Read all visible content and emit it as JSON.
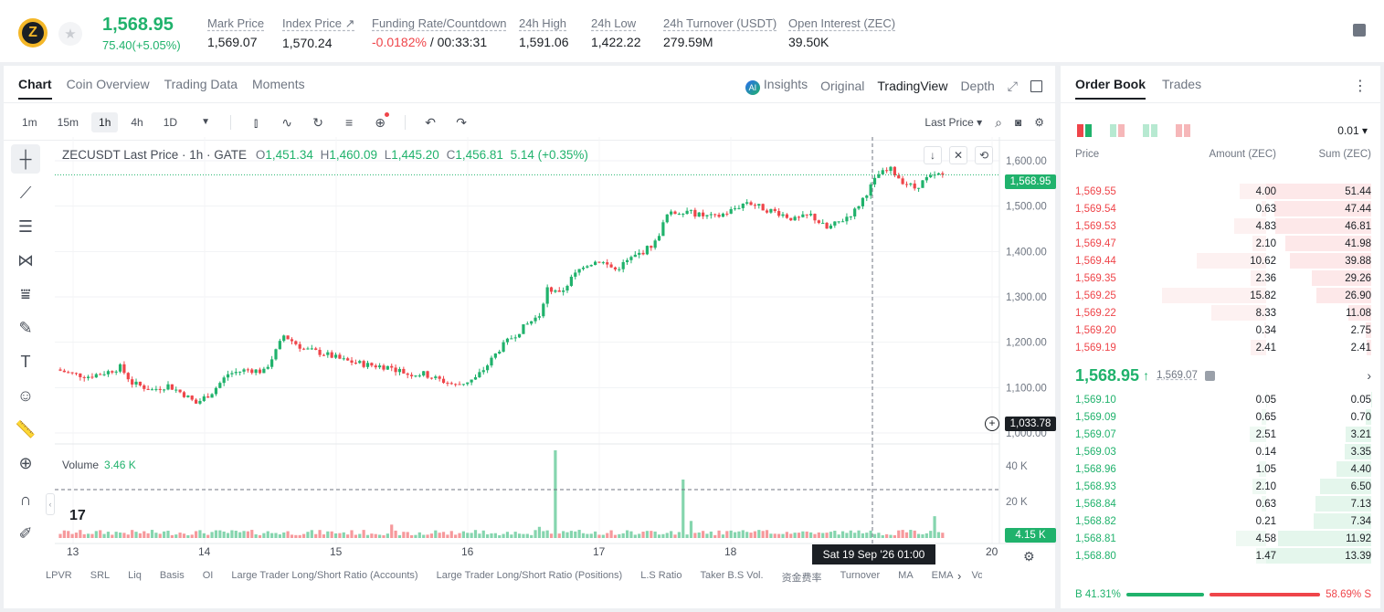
{
  "header": {
    "coin_logo": "Z",
    "last_price": "1,568.95",
    "change": "75.40(+5.05%)",
    "stats": [
      {
        "label": "Mark Price",
        "value": "1,569.07",
        "x": 227
      },
      {
        "label": "Index Price ↗",
        "value": "1,570.24",
        "x": 309
      },
      {
        "label": "Funding Rate/Countdown",
        "value_neg": "-0.0182%",
        "value": " / 00:33:31",
        "x": 407
      },
      {
        "label": "24h High",
        "value": "1,591.06",
        "x": 568
      },
      {
        "label": "24h Low",
        "value": "1,422.22",
        "x": 647
      },
      {
        "label": "24h Turnover (USDT)",
        "value": "279.59M",
        "x": 726
      },
      {
        "label": "Open Interest (ZEC)",
        "value": "39.50K",
        "x": 863
      }
    ]
  },
  "chart_tabs": [
    "Chart",
    "Coin Overview",
    "Trading Data",
    "Moments"
  ],
  "view_tabs": {
    "insights": "Insights",
    "original": "Original",
    "tradingview": "TradingView",
    "depth": "Depth",
    "ai_badge": "AI"
  },
  "toolbar": {
    "intervals": [
      "1m",
      "15m",
      "1h",
      "4h",
      "1D"
    ],
    "active_interval": "1h",
    "price_type": "Last Price ▾"
  },
  "legend": {
    "symbol": "ZECUSDT Last Price · 1h · GATE",
    "o_label": "O",
    "o": "1,451.34",
    "h_label": "H",
    "h": "1,460.09",
    "l_label": "L",
    "l": "1,445.20",
    "c_label": "C",
    "c": "1,456.81",
    "chg": "5.14 (+0.35%)"
  },
  "volume_legend": {
    "label": "Volume",
    "value": "3.46 K"
  },
  "price_axis": [
    "1,600.00",
    "1,500.00",
    "1,400.00",
    "1,300.00",
    "1,200.00",
    "1,100.00",
    "1,000.00"
  ],
  "volume_axis": [
    "40 K",
    "20 K"
  ],
  "x_axis": [
    "13",
    "14",
    "15",
    "16",
    "17",
    "18",
    "20"
  ],
  "tags": {
    "last_price": "1,568.95",
    "crosshair_price": "1,033.78",
    "volume": "4.15 K",
    "crosshair_date": "Sat 19 Sep '26   01:00"
  },
  "indicators": [
    "LPVR",
    "SRL",
    "Liq",
    "Basis",
    "OI",
    "Large Trader Long/Short Ratio (Accounts)",
    "Large Trader Long/Short Ratio (Positions)",
    "L.S Ratio",
    "Taker B.S Vol.",
    "资金费率",
    "Turnover",
    "MA",
    "EMA",
    "Volu"
  ],
  "tv_logo": "17",
  "colors": {
    "up": "#20b26c",
    "down": "#ef454a"
  },
  "order_book": {
    "tabs": [
      "Order Book",
      "Trades"
    ],
    "precision": "0.01 ▾",
    "headers": {
      "price": "Price",
      "amount": "Amount (ZEC)",
      "sum": "Sum (ZEC)"
    },
    "asks": [
      {
        "price": "1,569.55",
        "amount": "4.00",
        "sum": "51.44"
      },
      {
        "price": "1,569.54",
        "amount": "0.63",
        "sum": "47.44"
      },
      {
        "price": "1,569.53",
        "amount": "4.83",
        "sum": "46.81"
      },
      {
        "price": "1,569.47",
        "amount": "2.10",
        "sum": "41.98"
      },
      {
        "price": "1,569.44",
        "amount": "10.62",
        "sum": "39.88"
      },
      {
        "price": "1,569.35",
        "amount": "2.36",
        "sum": "29.26"
      },
      {
        "price": "1,569.25",
        "amount": "15.82",
        "sum": "26.90"
      },
      {
        "price": "1,569.22",
        "amount": "8.33",
        "sum": "11.08"
      },
      {
        "price": "1,569.20",
        "amount": "0.34",
        "sum": "2.75"
      },
      {
        "price": "1,569.19",
        "amount": "2.41",
        "sum": "2.41"
      }
    ],
    "mid_price": "1,568.95",
    "mid_arrow": "↑",
    "mark": "1,569.07",
    "bids": [
      {
        "price": "1,569.10",
        "amount": "0.05",
        "sum": "0.05"
      },
      {
        "price": "1,569.09",
        "amount": "0.65",
        "sum": "0.70"
      },
      {
        "price": "1,569.07",
        "amount": "2.51",
        "sum": "3.21"
      },
      {
        "price": "1,569.03",
        "amount": "0.14",
        "sum": "3.35"
      },
      {
        "price": "1,568.96",
        "amount": "1.05",
        "sum": "4.40"
      },
      {
        "price": "1,568.93",
        "amount": "2.10",
        "sum": "6.50"
      },
      {
        "price": "1,568.84",
        "amount": "0.63",
        "sum": "7.13"
      },
      {
        "price": "1,568.82",
        "amount": "0.21",
        "sum": "7.34"
      },
      {
        "price": "1,568.81",
        "amount": "4.58",
        "sum": "11.92"
      },
      {
        "price": "1,568.80",
        "amount": "1.47",
        "sum": "13.39"
      }
    ],
    "buy_ratio": "B 41.31%",
    "sell_ratio": "58.69% S",
    "buy_pct": 41.31
  },
  "chart_data": {
    "type": "candlestick",
    "interval": "1h",
    "ylim": [
      1000,
      1600
    ],
    "candles_summary": [
      {
        "x": "13",
        "close": 1140
      },
      {
        "x": "14",
        "close": 1100
      },
      {
        "x": "15",
        "close": 1200
      },
      {
        "x": "16",
        "close": 1110
      },
      {
        "x": "17",
        "close": 1300
      },
      {
        "x": "18",
        "close": 1480
      },
      {
        "x": "19",
        "close": 1568.95
      }
    ],
    "last_price": 1568.95,
    "volume_axis_max_k": 40
  }
}
